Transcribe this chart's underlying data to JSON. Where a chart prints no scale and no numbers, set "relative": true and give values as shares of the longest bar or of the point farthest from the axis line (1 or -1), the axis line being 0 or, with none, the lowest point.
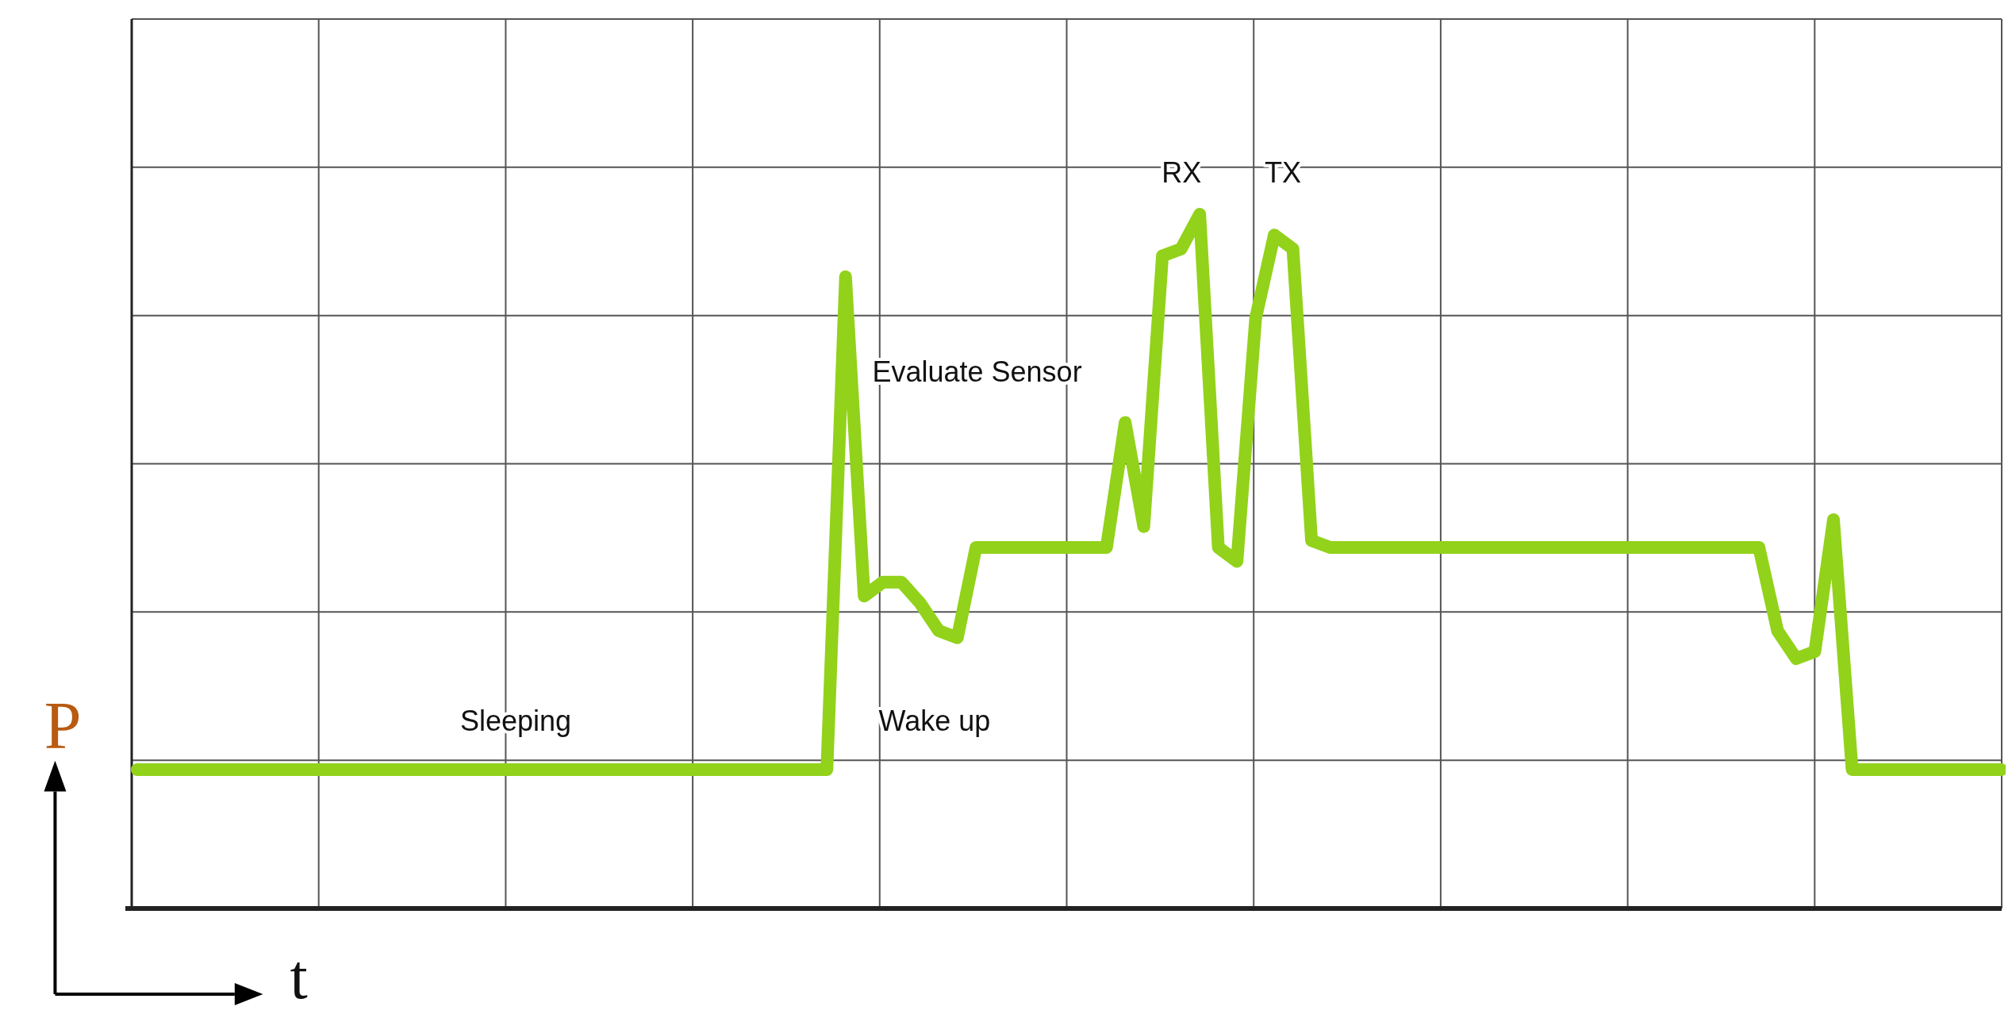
{
  "chart_data": {
    "type": "line",
    "relative": true,
    "xlabel": "t",
    "ylabel": "P",
    "grid": true,
    "line_style": "solid",
    "categories": [
      null,
      null,
      null,
      null,
      null,
      null,
      null,
      null,
      null,
      null,
      null,
      null,
      null,
      null,
      null,
      null,
      null,
      null,
      null,
      null,
      null,
      null,
      null,
      null,
      null,
      null,
      null,
      null,
      null,
      null,
      null,
      null,
      null,
      null,
      null,
      null,
      null,
      null,
      null,
      null,
      null,
      null,
      null,
      null,
      null,
      null,
      null,
      null,
      null,
      null,
      null,
      null,
      null,
      null,
      null,
      null,
      null,
      null,
      null,
      null,
      null,
      null,
      null,
      null,
      null,
      null,
      null,
      null,
      null,
      null,
      null,
      null,
      null,
      null,
      null,
      null,
      null,
      null,
      null,
      null,
      null,
      null,
      null,
      null,
      null,
      null,
      null,
      null,
      null,
      null,
      null,
      null,
      null,
      null,
      null,
      null,
      null,
      null,
      null,
      null,
      null
    ],
    "series": [
      {
        "color": "#92d21a",
        "values": [
          0.2,
          0.2,
          0.2,
          0.2,
          0.2,
          0.2,
          0.2,
          0.2,
          0.2,
          0.2,
          0.2,
          0.2,
          0.2,
          0.2,
          0.2,
          0.2,
          0.2,
          0.2,
          0.2,
          0.2,
          0.2,
          0.2,
          0.2,
          0.2,
          0.2,
          0.2,
          0.2,
          0.2,
          0.2,
          0.2,
          0.2,
          0.2,
          0.2,
          0.2,
          0.2,
          0.2,
          0.2,
          0.2,
          0.91,
          0.45,
          0.47,
          0.47,
          0.44,
          0.4,
          0.39,
          0.52,
          0.52,
          0.52,
          0.52,
          0.52,
          0.52,
          0.52,
          0.52,
          0.7,
          0.55,
          0.94,
          0.95,
          1,
          0.52,
          0.5,
          0.85,
          0.97,
          0.95,
          0.53,
          0.52,
          0.52,
          0.52,
          0.52,
          0.52,
          0.52,
          0.52,
          0.52,
          0.52,
          0.52,
          0.52,
          0.52,
          0.52,
          0.52,
          0.52,
          0.52,
          0.52,
          0.52,
          0.52,
          0.52,
          0.52,
          0.52,
          0.52,
          0.52,
          0.4,
          0.36,
          0.37,
          0.56,
          0.2,
          0.2,
          0.2,
          0.2,
          0.2,
          0.2,
          0.2,
          0.2,
          0.2
        ]
      }
    ],
    "annotations": [
      "Sleeping",
      "Wake up",
      "Evaluate Sensor",
      "RX",
      "TX"
    ]
  }
}
